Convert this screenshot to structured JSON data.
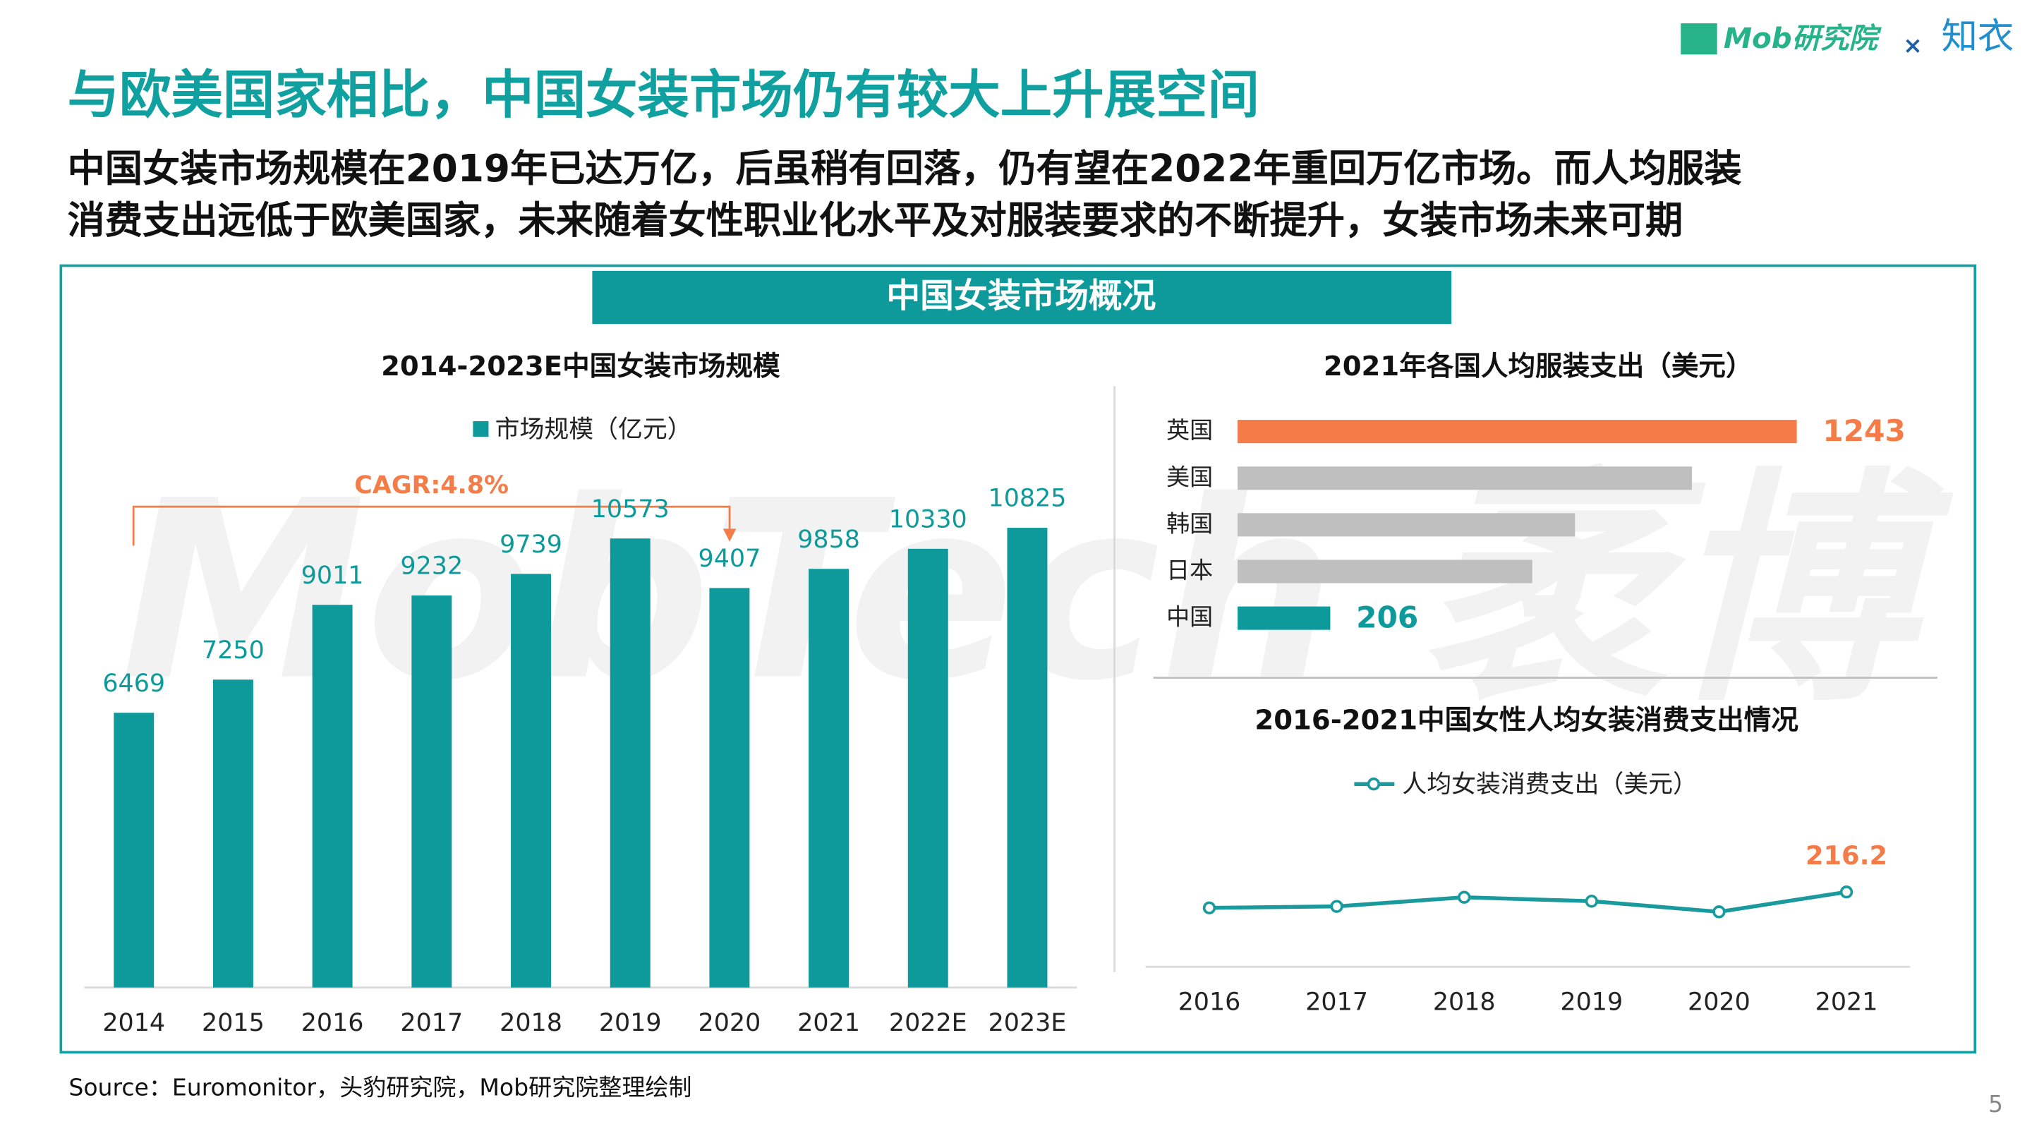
{
  "header": {
    "title": "与欧美国家相比，中国女装市场仍有较大上升展空间",
    "subtitle_lines": [
      "中国女装市场规模在2019年已达万亿，后虽稍有回落，仍有望在2022年重回万亿市场。而人均服装",
      "消费支出远低于欧美国家，未来随着女性职业化水平及对服装要求的不断提升，女装市场未来可期"
    ],
    "logo": "Mob研究院",
    "logo_separator": "×",
    "partner_logo": "知衣"
  },
  "panel_title": "中国女装市场概况",
  "watermark": "MobTech 袤博",
  "chart_data": [
    {
      "type": "bar",
      "title": "2014-2023E中国女装市场规模",
      "categories": [
        "2014",
        "2015",
        "2016",
        "2017",
        "2018",
        "2019",
        "2020",
        "2021",
        "2022E",
        "2023E"
      ],
      "series": [
        {
          "name": "市场规模（亿元）",
          "color": "#0e9a9a",
          "values": [
            6469,
            7250,
            9011,
            9232,
            9739,
            10573,
            9407,
            9858,
            10330,
            10825
          ]
        }
      ],
      "ylim": [
        0,
        13000
      ],
      "annotation": "CAGR:4.8%",
      "annotation_color": "#f47c48"
    },
    {
      "type": "hbar",
      "title": "2021年各国人均服装支出（美元）",
      "categories": [
        "英国",
        "美国",
        "韩国",
        "日本",
        "中国"
      ],
      "values": [
        1243,
        1010,
        750,
        655,
        206
      ],
      "colors": [
        "#f47c48",
        "#bfbfbf",
        "#bfbfbf",
        "#bfbfbf",
        "#0e9a9a"
      ],
      "show_value_labels": [
        true,
        false,
        false,
        false,
        true
      ],
      "xlim": [
        0,
        1400
      ]
    },
    {
      "type": "line",
      "title": "2016-2021中国女性人均女装消费支出情况",
      "categories": [
        "2016",
        "2017",
        "2018",
        "2019",
        "2020",
        "2021"
      ],
      "series": [
        {
          "name": "人均女装消费支出（美元）",
          "color": "#1a9a9c",
          "values": [
            200,
            201.5,
            210.8,
            206.8,
            196,
            216.2
          ]
        }
      ],
      "show_value_labels": [
        false,
        false,
        false,
        false,
        false,
        true
      ],
      "value_label_color": "#f47c48",
      "ylim": [
        140,
        280
      ]
    }
  ],
  "footer": {
    "source": "Source：Euromonitor，头豹研究院，Mob研究院整理绘制",
    "page": 5
  }
}
